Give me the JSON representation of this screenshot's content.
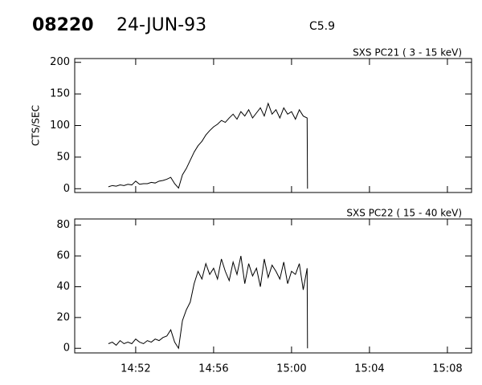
{
  "header": {
    "event": "08220",
    "date": "24-JUN-93",
    "class": "C5.9"
  },
  "chart_data": [
    {
      "type": "line",
      "title": "SXS PC21  (  3 - 15 keV)",
      "ylabel": "CTS/SEC",
      "x": [
        890.6,
        890.8,
        891.0,
        891.2,
        891.4,
        891.6,
        891.8,
        892.0,
        892.2,
        892.4,
        892.6,
        892.8,
        893.0,
        893.2,
        893.4,
        893.6,
        893.8,
        894.0,
        894.2,
        894.4,
        894.6,
        894.8,
        895.0,
        895.2,
        895.4,
        895.6,
        895.8,
        896.0,
        896.2,
        896.4,
        896.6,
        896.8,
        897.0,
        897.2,
        897.4,
        897.6,
        897.8,
        898.0,
        898.2,
        898.4,
        898.6,
        898.8,
        899.0,
        899.2,
        899.4,
        899.6,
        899.8,
        900.0,
        900.2,
        900.4,
        900.6,
        900.8,
        900.82
      ],
      "series": [
        {
          "color": "#000000",
          "values": [
            3,
            5,
            4,
            6,
            5,
            7,
            6,
            12,
            7,
            8,
            8,
            10,
            9,
            12,
            13,
            15,
            18,
            8,
            1,
            22,
            32,
            45,
            58,
            68,
            75,
            85,
            92,
            98,
            102,
            108,
            105,
            112,
            118,
            110,
            122,
            115,
            125,
            112,
            120,
            128,
            115,
            135,
            118,
            125,
            112,
            128,
            118,
            122,
            110,
            125,
            115,
            112,
            0
          ]
        }
      ],
      "xlim": [
        888.87,
        909.24
      ],
      "ylim": [
        -6,
        206
      ],
      "yticks": [
        0,
        50,
        100,
        150,
        200
      ]
    },
    {
      "type": "line",
      "title": "SXS PC22  ( 15 - 40 keV)",
      "x": [
        890.6,
        890.8,
        891.0,
        891.2,
        891.4,
        891.6,
        891.8,
        892.0,
        892.2,
        892.4,
        892.6,
        892.8,
        893.0,
        893.2,
        893.4,
        893.6,
        893.8,
        894.0,
        894.2,
        894.4,
        894.6,
        894.8,
        895.0,
        895.2,
        895.4,
        895.6,
        895.8,
        896.0,
        896.2,
        896.4,
        896.6,
        896.8,
        897.0,
        897.2,
        897.4,
        897.6,
        897.8,
        898.0,
        898.2,
        898.4,
        898.6,
        898.8,
        899.0,
        899.2,
        899.4,
        899.6,
        899.8,
        900.0,
        900.2,
        900.4,
        900.6,
        900.8,
        900.82
      ],
      "series": [
        {
          "color": "#000000",
          "values": [
            3,
            4,
            2,
            5,
            3,
            4,
            3,
            6,
            4,
            3,
            5,
            4,
            6,
            5,
            7,
            8,
            12,
            4,
            0,
            18,
            25,
            30,
            42,
            50,
            45,
            55,
            48,
            52,
            45,
            58,
            50,
            44,
            56,
            48,
            60,
            42,
            55,
            47,
            52,
            40,
            58,
            46,
            54,
            50,
            45,
            56,
            42,
            50,
            48,
            55,
            38,
            52,
            0
          ]
        }
      ],
      "xlim": [
        888.87,
        909.24
      ],
      "ylim": [
        -3,
        84
      ],
      "yticks": [
        0,
        20,
        40,
        60,
        80
      ],
      "xticks": [
        {
          "value": 892,
          "label": "14:52"
        },
        {
          "value": 896,
          "label": "14:56"
        },
        {
          "value": 900,
          "label": "15:00"
        },
        {
          "value": 904,
          "label": "15:04"
        },
        {
          "value": 908,
          "label": "15:08"
        }
      ]
    }
  ]
}
